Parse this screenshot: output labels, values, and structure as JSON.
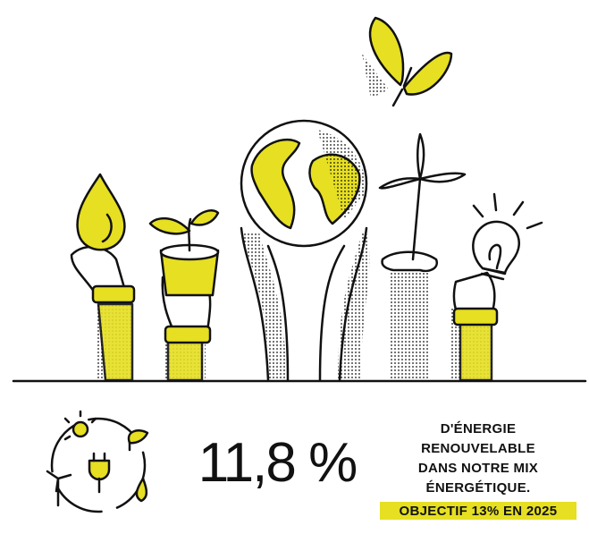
{
  "stat": {
    "value": "11,8 %",
    "lines": [
      "D'ÉNERGIE",
      "RENOUVELABLE",
      "DANS NOTRE MIX",
      "ÉNERGÉTIQUE."
    ],
    "objective": "OBJECTIF 13% EN 2025"
  }
}
